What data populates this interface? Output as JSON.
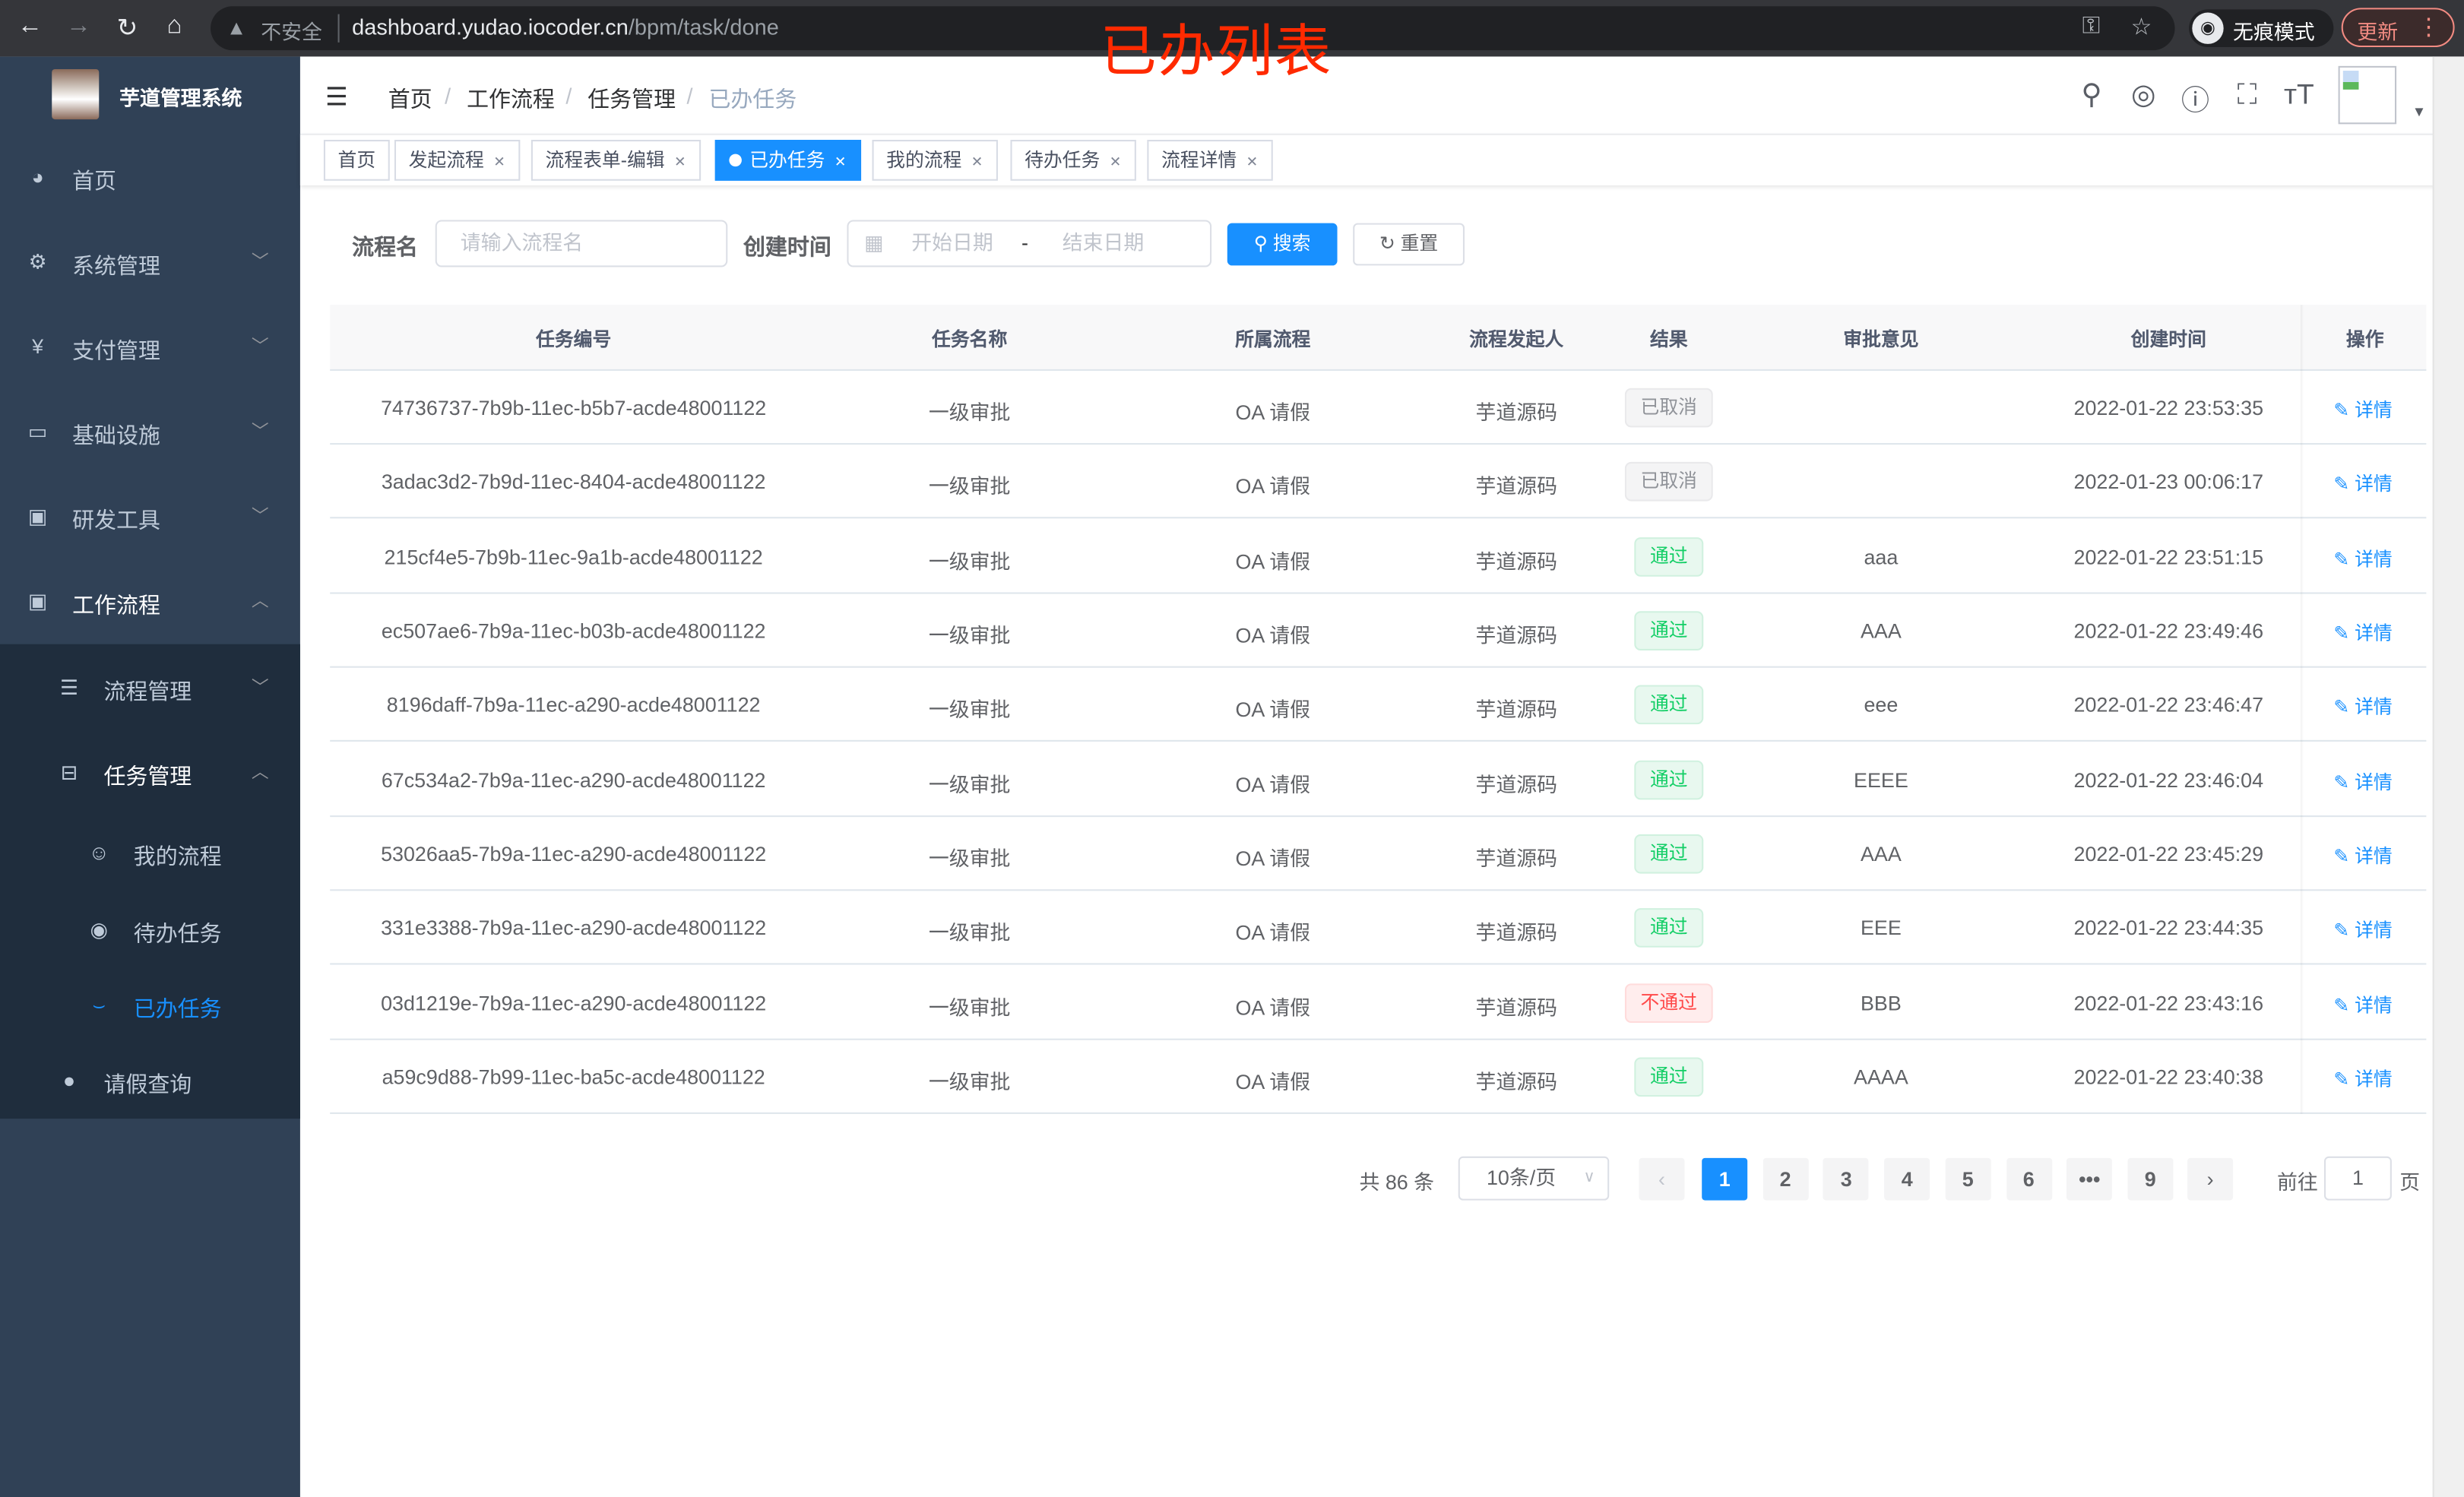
{
  "browser": {
    "url_host": "dashboard.yudao.iocoder.cn",
    "url_path": "/bpm/task/done",
    "insecure_label": "不安全",
    "incognito_label": "无痕模式",
    "update_label": "更新"
  },
  "overlay_title": "已办列表",
  "sidebar": {
    "title": "芋道管理系统",
    "items": [
      {
        "label": "首页",
        "icon": "dashboard-icon"
      },
      {
        "label": "系统管理",
        "icon": "gear-icon"
      },
      {
        "label": "支付管理",
        "icon": "yen-icon"
      },
      {
        "label": "基础设施",
        "icon": "monitor-icon"
      },
      {
        "label": "研发工具",
        "icon": "toolbox-icon"
      },
      {
        "label": "工作流程",
        "icon": "toolbox-icon"
      },
      {
        "label": "流程管理",
        "icon": "list-icon"
      },
      {
        "label": "任务管理",
        "icon": "tree-icon"
      },
      {
        "label": "我的流程",
        "icon": "people-icon"
      },
      {
        "label": "待办任务",
        "icon": "eye-icon"
      },
      {
        "label": "已办任务",
        "icon": "eye-closed-icon",
        "active": true
      },
      {
        "label": "请假查询",
        "icon": "user-icon"
      }
    ]
  },
  "breadcrumb": [
    "首页",
    "工作流程",
    "任务管理",
    "已办任务"
  ],
  "tags": [
    {
      "label": "首页"
    },
    {
      "label": "发起流程"
    },
    {
      "label": "流程表单-编辑"
    },
    {
      "label": "已办任务",
      "active": true
    },
    {
      "label": "我的流程"
    },
    {
      "label": "待办任务"
    },
    {
      "label": "流程详情"
    }
  ],
  "filters": {
    "name_label": "流程名",
    "name_placeholder": "请输入流程名",
    "time_label": "创建时间",
    "start_placeholder": "开始日期",
    "range_sep": "-",
    "end_placeholder": "结束日期",
    "search_label": "搜索",
    "reset_label": "重置"
  },
  "table": {
    "headers": [
      "任务编号",
      "任务名称",
      "所属流程",
      "流程发起人",
      "结果",
      "审批意见",
      "创建时间",
      "操作"
    ],
    "action_label": "详情",
    "rows": [
      {
        "id": "74736737-7b9b-11ec-b5b7-acde48001122",
        "name": "一级审批",
        "process": "OA 请假",
        "starter": "芋道源码",
        "result": "已取消",
        "result_type": "cancel",
        "comment": "",
        "created": "2022-01-22 23:53:35"
      },
      {
        "id": "3adac3d2-7b9d-11ec-8404-acde48001122",
        "name": "一级审批",
        "process": "OA 请假",
        "starter": "芋道源码",
        "result": "已取消",
        "result_type": "cancel",
        "comment": "",
        "created": "2022-01-23 00:06:17"
      },
      {
        "id": "215cf4e5-7b9b-11ec-9a1b-acde48001122",
        "name": "一级审批",
        "process": "OA 请假",
        "starter": "芋道源码",
        "result": "通过",
        "result_type": "pass",
        "comment": "aaa",
        "created": "2022-01-22 23:51:15"
      },
      {
        "id": "ec507ae6-7b9a-11ec-b03b-acde48001122",
        "name": "一级审批",
        "process": "OA 请假",
        "starter": "芋道源码",
        "result": "通过",
        "result_type": "pass",
        "comment": "AAA",
        "created": "2022-01-22 23:49:46"
      },
      {
        "id": "8196daff-7b9a-11ec-a290-acde48001122",
        "name": "一级审批",
        "process": "OA 请假",
        "starter": "芋道源码",
        "result": "通过",
        "result_type": "pass",
        "comment": "eee",
        "created": "2022-01-22 23:46:47"
      },
      {
        "id": "67c534a2-7b9a-11ec-a290-acde48001122",
        "name": "一级审批",
        "process": "OA 请假",
        "starter": "芋道源码",
        "result": "通过",
        "result_type": "pass",
        "comment": "EEEE",
        "created": "2022-01-22 23:46:04"
      },
      {
        "id": "53026aa5-7b9a-11ec-a290-acde48001122",
        "name": "一级审批",
        "process": "OA 请假",
        "starter": "芋道源码",
        "result": "通过",
        "result_type": "pass",
        "comment": "AAA",
        "created": "2022-01-22 23:45:29"
      },
      {
        "id": "331e3388-7b9a-11ec-a290-acde48001122",
        "name": "一级审批",
        "process": "OA 请假",
        "starter": "芋道源码",
        "result": "通过",
        "result_type": "pass",
        "comment": "EEE",
        "created": "2022-01-22 23:44:35"
      },
      {
        "id": "03d1219e-7b9a-11ec-a290-acde48001122",
        "name": "一级审批",
        "process": "OA 请假",
        "starter": "芋道源码",
        "result": "不通过",
        "result_type": "fail",
        "comment": "BBB",
        "created": "2022-01-22 23:43:16"
      },
      {
        "id": "a59c9d88-7b99-11ec-ba5c-acde48001122",
        "name": "一级审批",
        "process": "OA 请假",
        "starter": "芋道源码",
        "result": "通过",
        "result_type": "pass",
        "comment": "AAAA",
        "created": "2022-01-22 23:40:38"
      }
    ]
  },
  "pagination": {
    "total_label": "共 86 条",
    "page_size": "10条/页",
    "pages": [
      "1",
      "2",
      "3",
      "4",
      "5",
      "6",
      "•••",
      "9"
    ],
    "current": "1",
    "goto_prefix": "前往",
    "goto_value": "1",
    "goto_suffix": "页"
  },
  "colors": {
    "primary": "#1890ff",
    "sidebar": "#304156",
    "pass": "#13ce66",
    "fail": "#ff4949",
    "overlay": "#ff2a00"
  }
}
